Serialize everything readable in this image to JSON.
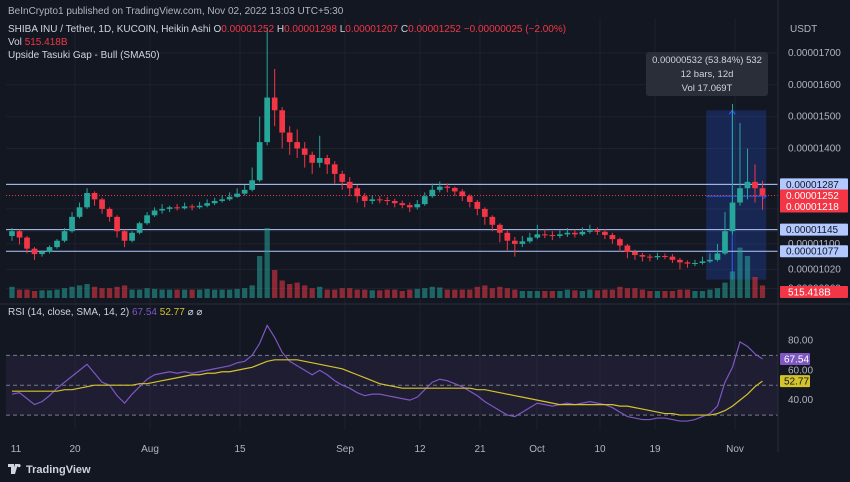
{
  "header": {
    "published_by": "BeInCrypto1 published on TradingView.com, Nov 02, 2022 13:03 UTC+5:30",
    "symbol": "SHIBA INU / Tether, 1D, KUCOIN, Heikin Ashi",
    "o_label": "O",
    "o_value": "0.00001252",
    "h_label": "H",
    "h_value": "0.00001298",
    "l_label": "L",
    "l_value": "0.00001207",
    "c_label": "C",
    "c_value": "0.00001252",
    "change": "−0.00000025 (−2.00%)",
    "vol_label": "Vol",
    "vol_value": "515.418B",
    "study": "Upside Tasuki Gap - Bull (SMA50)",
    "currency": "USDT"
  },
  "rsi_header": {
    "label": "RSI (14, close, SMA, 14, 2)",
    "rsi_value": "67.54",
    "ma_value": "52.77",
    "symbols": "⌀ ⌀"
  },
  "measure_tooltip": {
    "line1": "0.00000532 (53.84%) 532",
    "line2": "12 bars, 12d",
    "line3": "Vol 17.069T"
  },
  "footer": {
    "brand": "TradingView"
  },
  "colors": {
    "up": "#26a69a",
    "down": "#f23645",
    "rsi": "#7e57c2",
    "rsi_ma": "#d4c32a",
    "hline": "#b2c8ff",
    "measure": "#2962ff",
    "bg": "#131722"
  },
  "chart_data": [
    {
      "type": "candlestick",
      "title": "SHIBA INU / Tether, 1D, KUCOIN, Heikin Ashi",
      "y_axis_side": "right",
      "y_ticks": [
        "0.00001700",
        "0.00001600",
        "0.00001500",
        "0.00001400",
        "0.00001100",
        "0.00001020",
        "0.00000960"
      ],
      "x_ticks": [
        "11",
        "20",
        "Aug",
        "15",
        "Sep",
        "12",
        "21",
        "Oct",
        "10",
        "19",
        "Nov"
      ],
      "price_labels": [
        {
          "text": "0.00001287",
          "kind": "horizontal-line"
        },
        {
          "text": "0.00001252",
          "kind": "last-price"
        },
        {
          "text": "16:26:27",
          "kind": "countdown"
        },
        {
          "text": "0.00001218",
          "kind": "price"
        },
        {
          "text": "0.00001145",
          "kind": "horizontal-line"
        },
        {
          "text": "0.00001077",
          "kind": "horizontal-line"
        }
      ],
      "horizontal_levels": [
        1.287e-05,
        1.145e-05,
        1.077e-05
      ],
      "ylim": [
        9.3e-06,
        1.81e-05
      ],
      "candles": [
        [
          1125,
          1140,
          1150,
          1110
        ],
        [
          1140,
          1120,
          1145,
          1098
        ],
        [
          1120,
          1085,
          1125,
          1070
        ],
        [
          1085,
          1068,
          1090,
          1050
        ],
        [
          1068,
          1075,
          1080,
          1060
        ],
        [
          1075,
          1090,
          1095,
          1070
        ],
        [
          1090,
          1110,
          1115,
          1085
        ],
        [
          1110,
          1140,
          1150,
          1105
        ],
        [
          1140,
          1185,
          1200,
          1135
        ],
        [
          1185,
          1215,
          1230,
          1180
        ],
        [
          1215,
          1260,
          1275,
          1210
        ],
        [
          1260,
          1240,
          1265,
          1220
        ],
        [
          1240,
          1210,
          1245,
          1195
        ],
        [
          1210,
          1185,
          1215,
          1170
        ],
        [
          1185,
          1140,
          1190,
          1120
        ],
        [
          1140,
          1110,
          1145,
          1090
        ],
        [
          1110,
          1135,
          1140,
          1105
        ],
        [
          1135,
          1165,
          1170,
          1130
        ],
        [
          1165,
          1190,
          1200,
          1160
        ],
        [
          1190,
          1205,
          1215,
          1185
        ],
        [
          1205,
          1210,
          1225,
          1195
        ],
        [
          1210,
          1215,
          1220,
          1200
        ],
        [
          1215,
          1212,
          1225,
          1205
        ],
        [
          1212,
          1218,
          1230,
          1208
        ],
        [
          1218,
          1215,
          1225,
          1205
        ],
        [
          1215,
          1220,
          1232,
          1210
        ],
        [
          1220,
          1228,
          1240,
          1215
        ],
        [
          1228,
          1235,
          1245,
          1222
        ],
        [
          1235,
          1240,
          1252,
          1230
        ],
        [
          1240,
          1248,
          1262,
          1235
        ],
        [
          1248,
          1258,
          1275,
          1245
        ],
        [
          1258,
          1270,
          1285,
          1252
        ],
        [
          1270,
          1300,
          1340,
          1265
        ],
        [
          1300,
          1420,
          1500,
          1295
        ],
        [
          1420,
          1560,
          1780,
          1410
        ],
        [
          1560,
          1520,
          1650,
          1470
        ],
        [
          1520,
          1450,
          1530,
          1400
        ],
        [
          1450,
          1420,
          1470,
          1380
        ],
        [
          1420,
          1400,
          1460,
          1370
        ],
        [
          1400,
          1380,
          1420,
          1340
        ],
        [
          1380,
          1355,
          1390,
          1320
        ],
        [
          1355,
          1370,
          1440,
          1340
        ],
        [
          1370,
          1350,
          1380,
          1320
        ],
        [
          1350,
          1320,
          1360,
          1290
        ],
        [
          1320,
          1295,
          1330,
          1270
        ],
        [
          1295,
          1275,
          1310,
          1250
        ],
        [
          1275,
          1250,
          1285,
          1230
        ],
        [
          1250,
          1235,
          1260,
          1215
        ],
        [
          1235,
          1240,
          1252,
          1225
        ],
        [
          1240,
          1238,
          1250,
          1228
        ],
        [
          1238,
          1235,
          1248,
          1222
        ],
        [
          1235,
          1228,
          1242,
          1215
        ],
        [
          1228,
          1222,
          1236,
          1212
        ],
        [
          1222,
          1215,
          1230,
          1200
        ],
        [
          1215,
          1225,
          1238,
          1208
        ],
        [
          1225,
          1250,
          1262,
          1220
        ],
        [
          1250,
          1270,
          1290,
          1245
        ],
        [
          1270,
          1280,
          1296,
          1262
        ],
        [
          1280,
          1276,
          1290,
          1262
        ],
        [
          1276,
          1265,
          1280,
          1250
        ],
        [
          1265,
          1250,
          1272,
          1235
        ],
        [
          1250,
          1232,
          1256,
          1215
        ],
        [
          1232,
          1210,
          1238,
          1190
        ],
        [
          1210,
          1185,
          1215,
          1160
        ],
        [
          1185,
          1160,
          1190,
          1140
        ],
        [
          1160,
          1135,
          1165,
          1105
        ],
        [
          1135,
          1110,
          1142,
          1080
        ],
        [
          1110,
          1100,
          1122,
          1060
        ],
        [
          1100,
          1108,
          1125,
          1090
        ],
        [
          1108,
          1120,
          1135,
          1102
        ],
        [
          1120,
          1130,
          1160,
          1115
        ],
        [
          1130,
          1128,
          1145,
          1118
        ],
        [
          1128,
          1125,
          1140,
          1112
        ],
        [
          1125,
          1130,
          1142,
          1118
        ],
        [
          1130,
          1135,
          1150,
          1122
        ],
        [
          1135,
          1130,
          1145,
          1120
        ],
        [
          1130,
          1138,
          1152,
          1125
        ],
        [
          1138,
          1142,
          1160,
          1132
        ],
        [
          1142,
          1138,
          1152,
          1128
        ],
        [
          1138,
          1128,
          1146,
          1115
        ],
        [
          1128,
          1115,
          1135,
          1100
        ],
        [
          1115,
          1095,
          1120,
          1075
        ],
        [
          1095,
          1075,
          1100,
          1055
        ],
        [
          1075,
          1065,
          1082,
          1050
        ],
        [
          1065,
          1060,
          1072,
          1045
        ],
        [
          1060,
          1058,
          1068,
          1045
        ],
        [
          1058,
          1062,
          1072,
          1050
        ],
        [
          1062,
          1060,
          1070,
          1052
        ],
        [
          1060,
          1050,
          1068,
          1040
        ],
        [
          1050,
          1042,
          1056,
          1020
        ],
        [
          1042,
          1038,
          1048,
          1025
        ],
        [
          1038,
          1040,
          1050,
          1030
        ],
        [
          1040,
          1045,
          1060,
          1035
        ],
        [
          1045,
          1050,
          1070,
          1040
        ],
        [
          1050,
          1070,
          1100,
          1045
        ],
        [
          1070,
          1140,
          1200,
          1065
        ],
        [
          1140,
          1230,
          1540,
          1130
        ],
        [
          1230,
          1275,
          1480,
          1220
        ],
        [
          1275,
          1295,
          1400,
          1240
        ],
        [
          1295,
          1275,
          1350,
          1230
        ],
        [
          1275,
          1252,
          1298,
          1207
        ]
      ],
      "volume_unit": "relative",
      "volumes": [
        16,
        12,
        12,
        10,
        11,
        11,
        12,
        14,
        16,
        18,
        20,
        16,
        14,
        14,
        16,
        18,
        12,
        12,
        14,
        13,
        12,
        12,
        12,
        12,
        12,
        12,
        13,
        12,
        12,
        12,
        13,
        14,
        18,
        60,
        100,
        40,
        25,
        20,
        22,
        18,
        14,
        16,
        12,
        12,
        14,
        14,
        12,
        12,
        11,
        11,
        12,
        12,
        10,
        12,
        13,
        14,
        16,
        15,
        12,
        12,
        12,
        12,
        16,
        18,
        14,
        16,
        14,
        12,
        10,
        10,
        10,
        10,
        10,
        10,
        12,
        11,
        10,
        12,
        11,
        12,
        12,
        16,
        14,
        14,
        12,
        10,
        10,
        10,
        10,
        12,
        12,
        10,
        10,
        12,
        14,
        22,
        38,
        72,
        60,
        30,
        18
      ],
      "volume_label": "515.418B",
      "measure": {
        "from_price": 9.88e-06,
        "to_price": 1.52e-05,
        "change": "0.00000532 (53.84%) 532",
        "bars": "12 bars, 12d",
        "volume": "Vol 17.069T"
      }
    },
    {
      "type": "line",
      "title": "RSI (14, close, SMA, 14, 2)",
      "y_ticks": [
        "80.00",
        "60.00",
        "40.00"
      ],
      "ylim": [
        20,
        95
      ],
      "bands": [
        70,
        50,
        30
      ],
      "series": [
        {
          "name": "RSI",
          "values": [
            44,
            45,
            41,
            37,
            39,
            43,
            48,
            52,
            56,
            60,
            64,
            58,
            52,
            50,
            43,
            38,
            44,
            49,
            54,
            57,
            58,
            59,
            58,
            59,
            58,
            59,
            60,
            61,
            62,
            63,
            65,
            66,
            70,
            78,
            90,
            82,
            72,
            66,
            63,
            60,
            57,
            60,
            57,
            53,
            50,
            48,
            45,
            43,
            44,
            44,
            43,
            42,
            41,
            40,
            42,
            47,
            52,
            54,
            53,
            51,
            49,
            46,
            43,
            39,
            36,
            33,
            30,
            29,
            32,
            35,
            38,
            37,
            36,
            37,
            38,
            37,
            38,
            39,
            38,
            37,
            35,
            32,
            29,
            28,
            27,
            27,
            28,
            28,
            27,
            26,
            26,
            27,
            29,
            31,
            36,
            52,
            62,
            79,
            76,
            71,
            67.54
          ]
        },
        {
          "name": "RSI-based MA",
          "values": [
            46,
            46,
            46,
            46,
            46,
            46,
            46,
            47,
            47,
            48,
            49,
            50,
            50,
            50,
            50,
            50,
            50,
            51,
            51,
            52,
            53,
            54,
            55,
            56,
            57,
            57,
            58,
            58,
            59,
            59,
            60,
            61,
            62,
            64,
            66,
            67,
            67,
            67,
            67,
            66,
            65,
            64,
            63,
            62,
            61,
            59,
            57,
            55,
            53,
            51,
            50,
            49,
            48,
            48,
            48,
            48,
            48,
            48,
            48,
            48,
            48,
            48,
            47,
            47,
            46,
            45,
            44,
            43,
            42,
            41,
            40,
            39,
            38,
            37,
            37,
            37,
            37,
            37,
            37,
            37,
            37,
            36,
            36,
            35,
            34,
            33,
            32,
            31,
            31,
            30,
            30,
            30,
            30,
            30,
            31,
            33,
            36,
            40,
            44,
            49,
            52.77
          ]
        }
      ]
    }
  ]
}
